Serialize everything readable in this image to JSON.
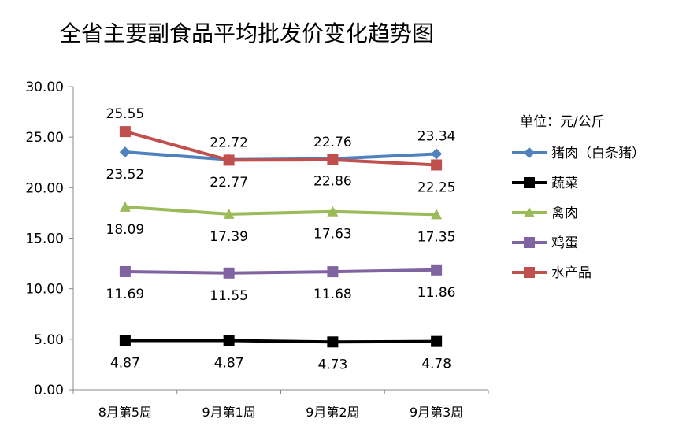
{
  "chart_data": {
    "type": "line",
    "title": "全省主要副食品平均批发价变化趋势图",
    "unit_label": "单位：元/公斤",
    "categories": [
      "8月第5周",
      "9月第1周",
      "9月第2周",
      "9月第3周"
    ],
    "ylim": [
      0,
      30
    ],
    "yticks": [
      "0.00",
      "5.00",
      "10.00",
      "15.00",
      "20.00",
      "25.00",
      "30.00"
    ],
    "legend_position": "right",
    "series": [
      {
        "name": "猪肉（白条猪）",
        "color": "#4F81BD",
        "marker": "diamond",
        "values": [
          23.52,
          22.77,
          22.86,
          23.34
        ],
        "label_pos": [
          "below",
          "below",
          "below",
          "above"
        ]
      },
      {
        "name": "蔬菜",
        "color": "#000000",
        "marker": "square",
        "values": [
          4.87,
          4.87,
          4.73,
          4.78
        ],
        "label_pos": [
          "below",
          "below",
          "below",
          "below"
        ]
      },
      {
        "name": "禽肉",
        "color": "#9BBB59",
        "marker": "triangle",
        "values": [
          18.09,
          17.39,
          17.63,
          17.35
        ],
        "label_pos": [
          "below",
          "below",
          "below",
          "below"
        ]
      },
      {
        "name": "鸡蛋",
        "color": "#8064A2",
        "marker": "square",
        "values": [
          11.69,
          11.55,
          11.68,
          11.86
        ],
        "label_pos": [
          "below",
          "below",
          "below",
          "below"
        ]
      },
      {
        "name": "水产品",
        "color": "#C0504D",
        "marker": "square",
        "values": [
          25.55,
          22.72,
          22.76,
          22.25
        ],
        "label_pos": [
          "above",
          "above",
          "above",
          "below"
        ]
      }
    ]
  }
}
